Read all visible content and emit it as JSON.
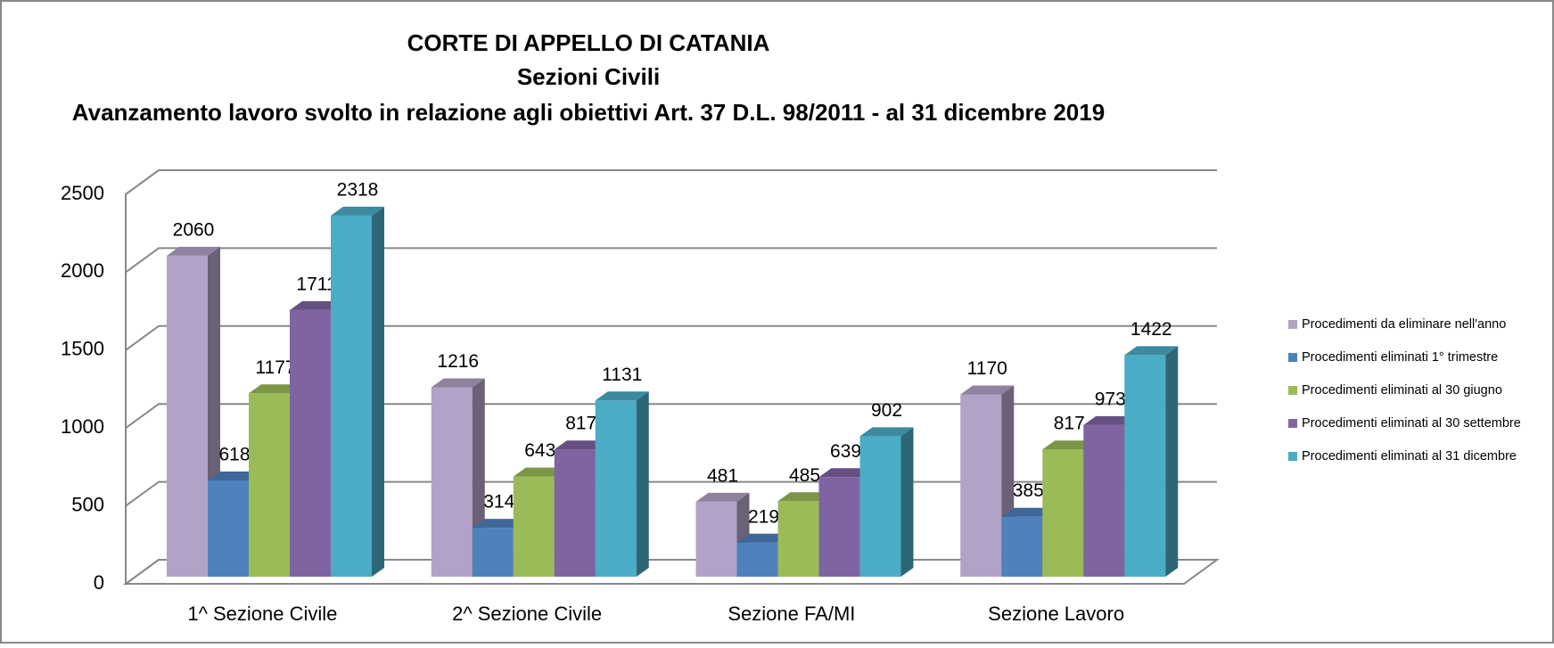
{
  "chart_data": {
    "type": "bar3d",
    "title": "CORTE DI APPELLO DI CATANIA",
    "subtitle": "Sezioni Civili",
    "subtitle2": "Avanzamento lavoro svolto in relazione agli obiettivi Art. 37 D.L. 98/2011 - al 31 dicembre 2019",
    "categories": [
      "1^ Sezione Civile",
      "2^ Sezione Civile",
      "Sezione FA/MI",
      "Sezione Lavoro"
    ],
    "series": [
      {
        "name": "Procedimenti da eliminare nell'anno",
        "color": "#b3a2c7",
        "values": [
          2060,
          1216,
          481,
          1170
        ]
      },
      {
        "name": "Procedimenti eliminati 1° trimestre",
        "color": "#4f81bd",
        "values": [
          618,
          314,
          219,
          385
        ]
      },
      {
        "name": "Procedimenti eliminati al 30 giugno",
        "color": "#9bbb59",
        "values": [
          1177,
          643,
          485,
          817
        ]
      },
      {
        "name": "Procedimenti eliminati al 30 settembre",
        "color": "#8064a2",
        "values": [
          1711,
          817,
          639,
          973
        ]
      },
      {
        "name": "Procedimenti eliminati al 31 dicembre",
        "color": "#4bacc6",
        "values": [
          2318,
          1131,
          902,
          1422
        ]
      }
    ],
    "ylim": [
      0,
      2500
    ],
    "yticks": [
      0,
      500,
      1000,
      1500,
      2000,
      2500
    ],
    "grid": true,
    "legend": "right"
  }
}
